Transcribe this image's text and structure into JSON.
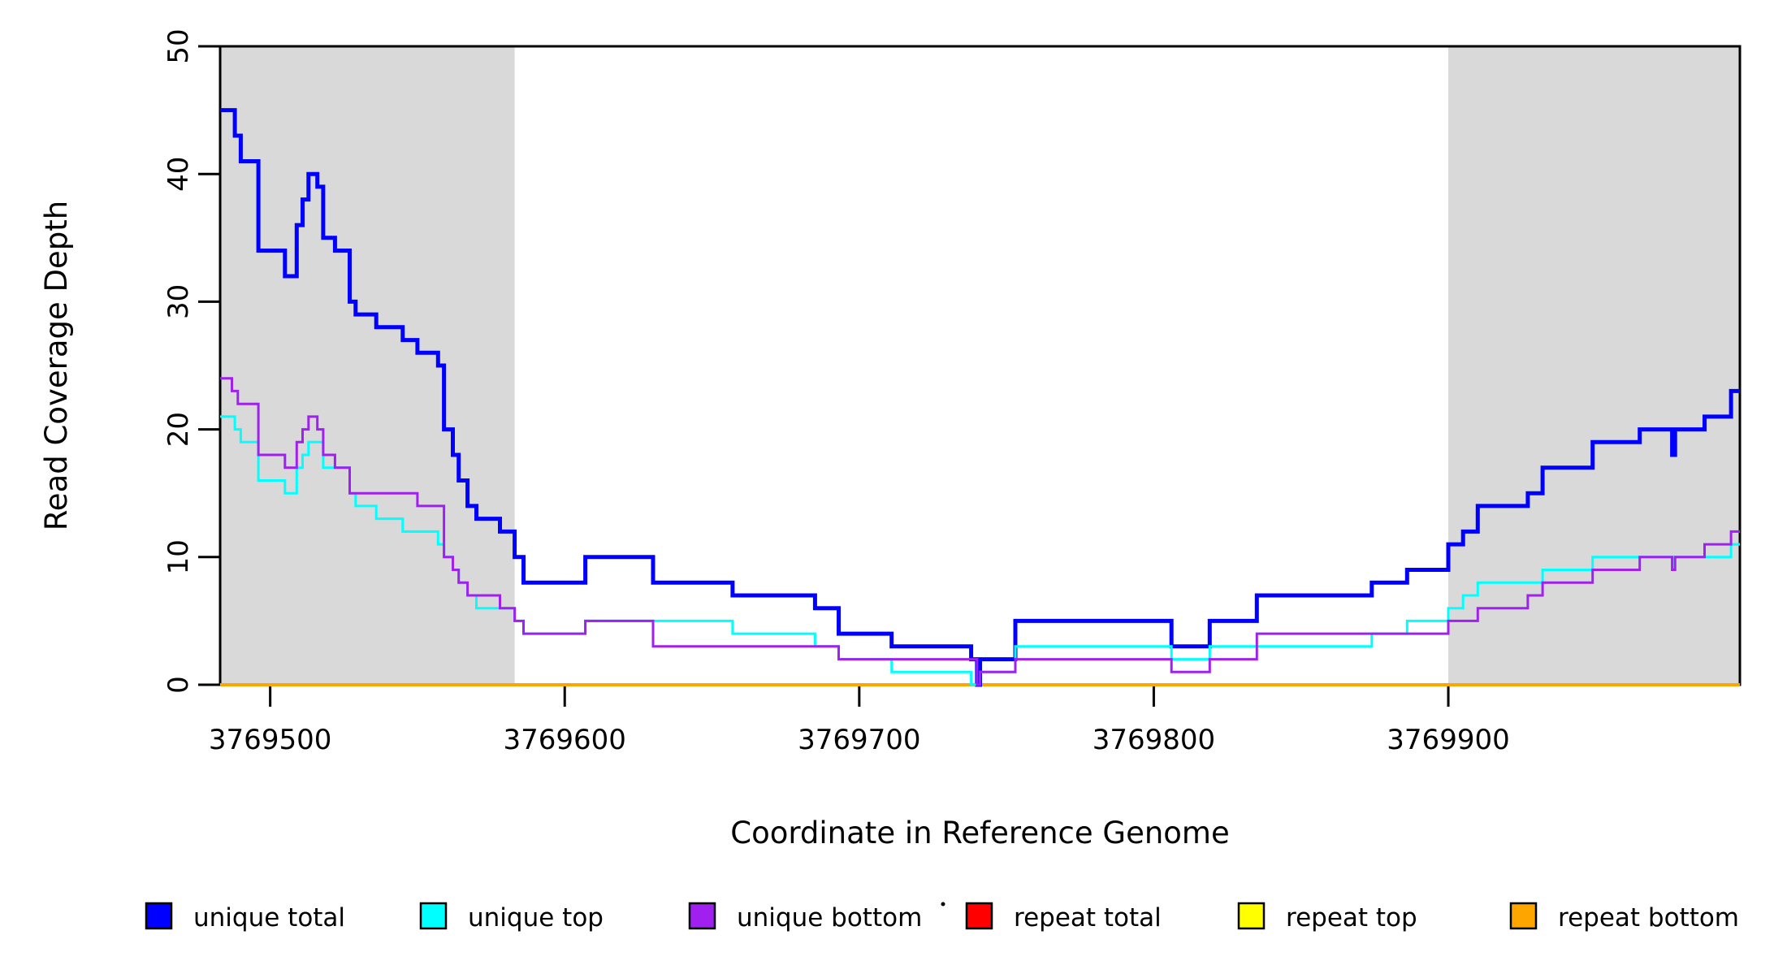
{
  "chart_data": {
    "type": "line",
    "subtype": "step",
    "title": "",
    "xlabel": "Coordinate in Reference Genome",
    "ylabel": "Read Coverage Depth",
    "xlim": [
      3769483,
      3769999
    ],
    "ylim": [
      0,
      50
    ],
    "x_ticks": [
      3769500,
      3769600,
      3769700,
      3769800,
      3769900
    ],
    "y_ticks": [
      0,
      10,
      20,
      30,
      40,
      50
    ],
    "grid": "off",
    "legend_position": "bottom",
    "shade_color": "#D9D9D9",
    "shaded_regions": [
      {
        "name": "left-repeat-region",
        "from": 3769483,
        "to": 3769583
      },
      {
        "name": "right-repeat-region",
        "from": 3769900,
        "to": 3769999
      }
    ],
    "series": [
      {
        "name": "repeat total",
        "color": "#FF0000",
        "width": 3,
        "steps": [
          [
            3769483,
            0
          ]
        ]
      },
      {
        "name": "repeat top",
        "color": "#FFFF00",
        "width": 3,
        "steps": [
          [
            3769483,
            0
          ]
        ]
      },
      {
        "name": "repeat bottom",
        "color": "#FFA500",
        "width": 4,
        "steps": [
          [
            3769483,
            0
          ]
        ]
      },
      {
        "name": "unique total",
        "color": "#0000FF",
        "width": 5,
        "steps": [
          [
            3769483,
            45
          ],
          [
            3769488,
            43
          ],
          [
            3769490,
            41
          ],
          [
            3769496,
            34
          ],
          [
            3769505,
            32
          ],
          [
            3769509,
            36
          ],
          [
            3769511,
            38
          ],
          [
            3769513,
            40
          ],
          [
            3769516,
            39
          ],
          [
            3769518,
            35
          ],
          [
            3769522,
            34
          ],
          [
            3769527,
            30
          ],
          [
            3769529,
            29
          ],
          [
            3769536,
            28
          ],
          [
            3769545,
            27
          ],
          [
            3769550,
            26
          ],
          [
            3769557,
            25
          ],
          [
            3769559,
            20
          ],
          [
            3769562,
            18
          ],
          [
            3769564,
            16
          ],
          [
            3769567,
            14
          ],
          [
            3769570,
            13
          ],
          [
            3769578,
            12
          ],
          [
            3769583,
            10
          ],
          [
            3769586,
            8
          ],
          [
            3769607,
            10
          ],
          [
            3769630,
            8
          ],
          [
            3769657,
            7
          ],
          [
            3769685,
            6
          ],
          [
            3769693,
            4
          ],
          [
            3769711,
            3
          ],
          [
            3769738,
            2
          ],
          [
            3769740,
            0
          ],
          [
            3769741,
            2
          ],
          [
            3769753,
            5
          ],
          [
            3769806,
            3
          ],
          [
            3769819,
            5
          ],
          [
            3769835,
            7
          ],
          [
            3769874,
            8
          ],
          [
            3769886,
            9
          ],
          [
            3769900,
            11
          ],
          [
            3769905,
            12
          ],
          [
            3769910,
            14
          ],
          [
            3769927,
            15
          ],
          [
            3769932,
            17
          ],
          [
            3769949,
            19
          ],
          [
            3769965,
            20
          ],
          [
            3769976,
            18
          ],
          [
            3769977,
            20
          ],
          [
            3769987,
            21
          ],
          [
            3769996,
            23
          ]
        ]
      },
      {
        "name": "unique top",
        "color": "#00FFFF",
        "width": 3,
        "steps": [
          [
            3769483,
            21
          ],
          [
            3769488,
            20
          ],
          [
            3769490,
            19
          ],
          [
            3769496,
            16
          ],
          [
            3769505,
            15
          ],
          [
            3769509,
            17
          ],
          [
            3769511,
            18
          ],
          [
            3769513,
            19
          ],
          [
            3769518,
            17
          ],
          [
            3769527,
            15
          ],
          [
            3769529,
            14
          ],
          [
            3769536,
            13
          ],
          [
            3769545,
            12
          ],
          [
            3769557,
            11
          ],
          [
            3769559,
            10
          ],
          [
            3769562,
            9
          ],
          [
            3769564,
            8
          ],
          [
            3769567,
            7
          ],
          [
            3769570,
            6
          ],
          [
            3769583,
            5
          ],
          [
            3769586,
            4
          ],
          [
            3769607,
            5
          ],
          [
            3769657,
            4
          ],
          [
            3769685,
            3
          ],
          [
            3769693,
            2
          ],
          [
            3769711,
            1
          ],
          [
            3769738,
            0
          ],
          [
            3769741,
            1
          ],
          [
            3769753,
            3
          ],
          [
            3769806,
            2
          ],
          [
            3769819,
            3
          ],
          [
            3769874,
            4
          ],
          [
            3769886,
            5
          ],
          [
            3769900,
            6
          ],
          [
            3769905,
            7
          ],
          [
            3769910,
            8
          ],
          [
            3769932,
            9
          ],
          [
            3769949,
            10
          ],
          [
            3769976,
            9
          ],
          [
            3769977,
            10
          ],
          [
            3769996,
            11
          ]
        ]
      },
      {
        "name": "unique bottom",
        "color": "#A020F0",
        "width": 3,
        "steps": [
          [
            3769483,
            24
          ],
          [
            3769487,
            23
          ],
          [
            3769489,
            22
          ],
          [
            3769496,
            18
          ],
          [
            3769505,
            17
          ],
          [
            3769509,
            19
          ],
          [
            3769511,
            20
          ],
          [
            3769513,
            21
          ],
          [
            3769516,
            20
          ],
          [
            3769518,
            18
          ],
          [
            3769522,
            17
          ],
          [
            3769527,
            15
          ],
          [
            3769550,
            14
          ],
          [
            3769559,
            10
          ],
          [
            3769562,
            9
          ],
          [
            3769564,
            8
          ],
          [
            3769567,
            7
          ],
          [
            3769578,
            6
          ],
          [
            3769583,
            5
          ],
          [
            3769586,
            4
          ],
          [
            3769607,
            5
          ],
          [
            3769630,
            3
          ],
          [
            3769693,
            2
          ],
          [
            3769740,
            0
          ],
          [
            3769741,
            1
          ],
          [
            3769753,
            2
          ],
          [
            3769806,
            1
          ],
          [
            3769819,
            2
          ],
          [
            3769835,
            4
          ],
          [
            3769900,
            5
          ],
          [
            3769910,
            6
          ],
          [
            3769927,
            7
          ],
          [
            3769932,
            8
          ],
          [
            3769949,
            9
          ],
          [
            3769965,
            10
          ],
          [
            3769976,
            9
          ],
          [
            3769977,
            10
          ],
          [
            3769987,
            11
          ],
          [
            3769996,
            12
          ]
        ]
      }
    ],
    "legend": [
      {
        "label": "unique total",
        "color": "#0000FF"
      },
      {
        "label": "unique top",
        "color": "#00FFFF"
      },
      {
        "label": "unique bottom",
        "color": "#A020F0"
      },
      {
        "label": "repeat total",
        "color": "#FF0000"
      },
      {
        "label": "repeat top",
        "color": "#FFFF00"
      },
      {
        "label": "repeat bottom",
        "color": "#FFA500"
      }
    ]
  }
}
